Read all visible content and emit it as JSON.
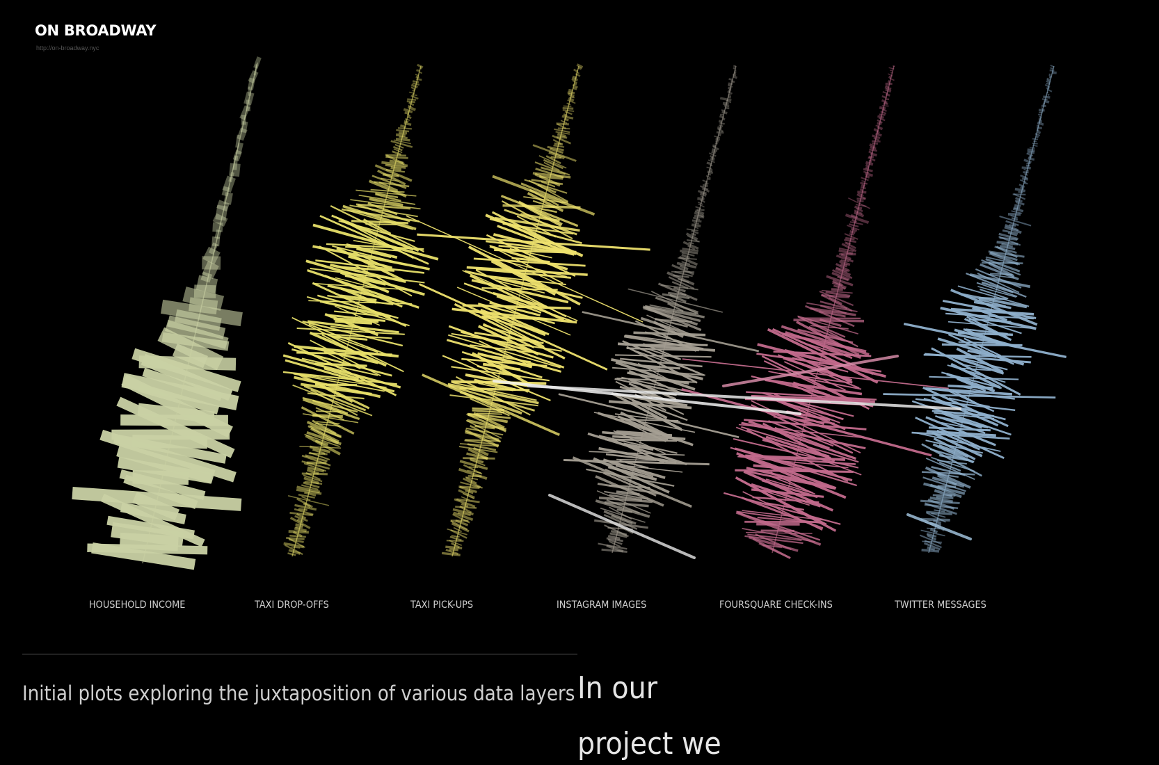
{
  "brand": {
    "title": "ON BROADWAY",
    "url": "http://on-broadway.nyc"
  },
  "caption": "Initial plots exploring the juxtaposition of various data layers",
  "body_text": "In our project we",
  "chart_data": {
    "type": "bar",
    "title": "",
    "description_in_image": "",
    "grid": false,
    "legend": "none",
    "series": [
      {
        "name": "HOUSEHOLD INCOME",
        "color": "#c9d1a4",
        "values": []
      },
      {
        "name": "TAXI DROP-OFFS",
        "color": "#e8e06a",
        "values": []
      },
      {
        "name": "TAXI PICK-UPS",
        "color": "#eee26e",
        "values": []
      },
      {
        "name": "INSTAGRAM IMAGES",
        "color": "#a59f93",
        "values": []
      },
      {
        "name": "FOURSQUARE CHECK-INS",
        "color": "#c26a8c",
        "values": []
      },
      {
        "name": "TWITTER MESSAGES",
        "color": "#8fb0cc",
        "values": []
      }
    ]
  }
}
